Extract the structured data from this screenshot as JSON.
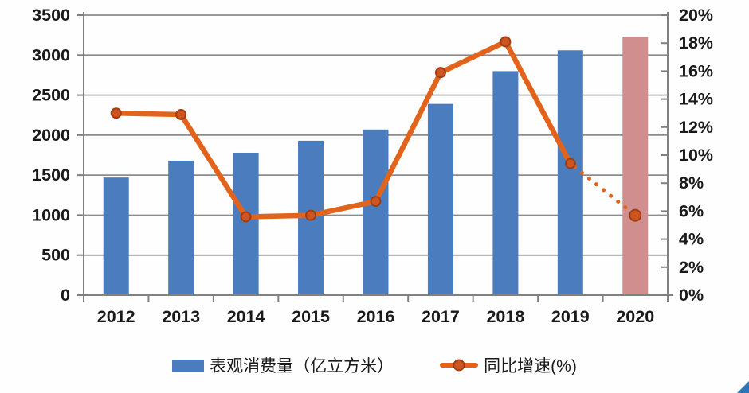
{
  "chart_data": {
    "type": "combo: bar (left axis) + line (right axis)",
    "title": "",
    "categories": [
      "2012",
      "2013",
      "2014",
      "2015",
      "2016",
      "2017",
      "2018",
      "2019",
      "2020"
    ],
    "series": [
      {
        "name": "表观消费量（亿立方米）",
        "type": "bar",
        "axis": "left",
        "values": [
          1470,
          1680,
          1780,
          1930,
          2070,
          2390,
          2800,
          3060,
          3230
        ],
        "note": "2020 bar drawn in pink (forecast highlight)"
      },
      {
        "name": "同比增速(%)",
        "type": "line",
        "axis": "right",
        "values": [
          13.0,
          12.9,
          5.6,
          5.7,
          6.7,
          15.9,
          18.1,
          9.4,
          5.7
        ],
        "note": "segment from 2019 to 2020 is dotted (forecast)"
      }
    ],
    "forecast_index": 8,
    "dotted_from_index": 7,
    "left_axis": {
      "min": 0,
      "max": 3500,
      "step": 500,
      "labels": [
        "0",
        "500",
        "1000",
        "1500",
        "2000",
        "2500",
        "3000",
        "3500"
      ]
    },
    "right_axis": {
      "min": 0,
      "max": 20,
      "step": 2,
      "labels": [
        "0%",
        "2%",
        "4%",
        "6%",
        "8%",
        "10%",
        "12%",
        "14%",
        "16%",
        "18%",
        "20%"
      ]
    },
    "grid": "horizontal",
    "legend_position": "bottom",
    "colors": {
      "bar_blue": "#4A7CBE",
      "bar_pink_forecast": "#D08E8E",
      "line_orange": "#E2641C",
      "marker_fill": "#CE5420",
      "marker_stroke": "#9E3E14",
      "grid_gray": "#8C8C8C",
      "axis_gray": "#808080",
      "text": "#1A1A1A",
      "corner_triangle": "#2E75B6"
    }
  },
  "legend": {
    "items": [
      {
        "label": "表观消费量（亿立方米）",
        "swatch": "bar"
      },
      {
        "label": "同比增速(%)",
        "swatch": "line-marker"
      }
    ]
  }
}
